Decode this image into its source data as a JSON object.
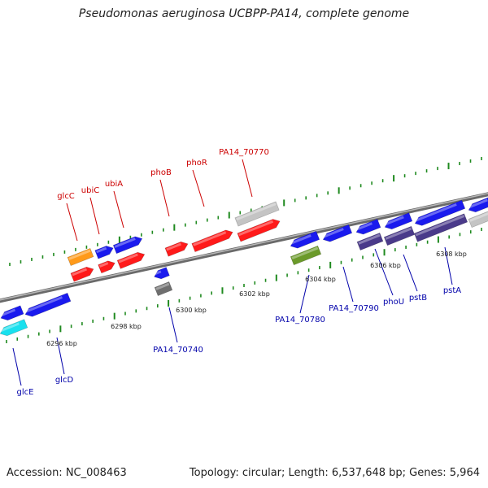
{
  "title": "Pseudomonas aeruginosa UCBPP-PA14, complete genome",
  "footer": {
    "accession": "Accession: NC_008463",
    "summary": "Topology: circular; Length: 6,537,648 bp; Genes: 5,964"
  },
  "colors": {
    "backbone": "#8a8a8a",
    "ruler_dots": "#1f8a1f",
    "forward_label": "#cc0000",
    "reverse_label": "#0000aa",
    "gene_red": "#ff1a1a",
    "gene_blue": "#1a1aee",
    "gene_orange": "#ff9a1a",
    "gene_gray": "#c4c4c4",
    "gene_darkgray": "#6e6e6e",
    "gene_olive": "#6b9a2a",
    "gene_purple": "#4a3a8a",
    "gene_cyan": "#1ae0ee"
  },
  "tick_labels": [
    "6296 kbp",
    "6298 kbp",
    "6300 kbp",
    "6302 kbp",
    "6304 kbp",
    "6306 kbp",
    "6308 kbp"
  ],
  "forward_genes": [
    "glcC",
    "ubiC",
    "ubiA",
    "phoB",
    "phoR",
    "PA14_70770"
  ],
  "reverse_genes": [
    "glcE",
    "glcD",
    "PA14_70740",
    "PA14_70780",
    "PA14_70790",
    "phoU",
    "pstB",
    "pstA"
  ]
}
